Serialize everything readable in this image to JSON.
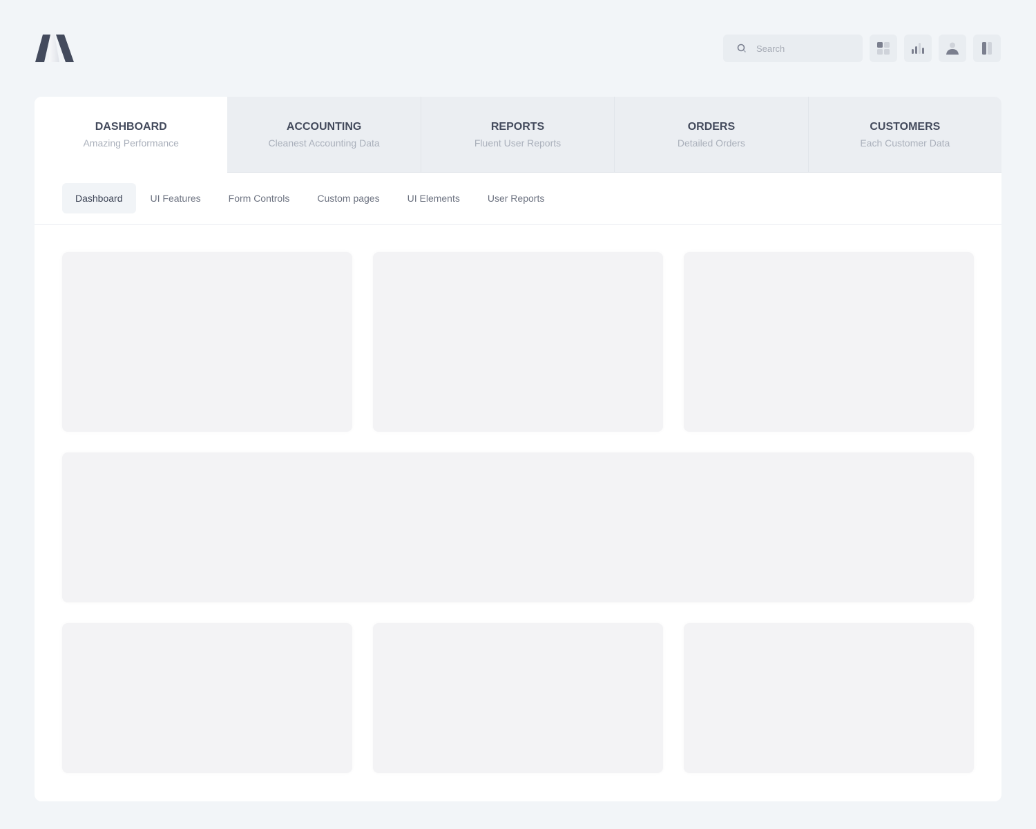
{
  "header": {
    "logo": "logo-mark",
    "search": {
      "placeholder": "Search",
      "icon": "search-icon"
    },
    "icons": [
      "apps-grid-icon",
      "bar-chart-icon",
      "user-icon",
      "columns-icon"
    ]
  },
  "main_tabs": [
    {
      "title": "DASHBOARD",
      "subtitle": "Amazing Performance",
      "active": true
    },
    {
      "title": "ACCOUNTING",
      "subtitle": "Cleanest Accounting Data"
    },
    {
      "title": "REPORTS",
      "subtitle": "Fluent User Reports"
    },
    {
      "title": "ORDERS",
      "subtitle": "Detailed Orders"
    },
    {
      "title": "CUSTOMERS",
      "subtitle": "Each Customer Data"
    }
  ],
  "sub_tabs": [
    {
      "label": "Dashboard",
      "active": true
    },
    {
      "label": "UI Features"
    },
    {
      "label": "Form Controls"
    },
    {
      "label": "Custom pages"
    },
    {
      "label": "UI Elements"
    },
    {
      "label": "User Reports"
    }
  ],
  "colors": {
    "background": "#f2f5f8",
    "text_dark": "#434a5c",
    "placeholder_card": "#f3f3f5"
  }
}
